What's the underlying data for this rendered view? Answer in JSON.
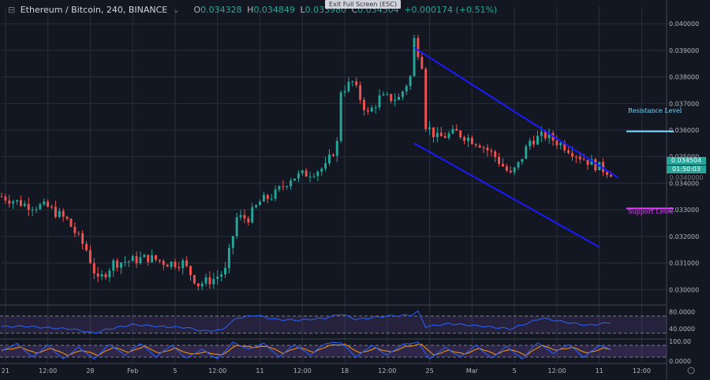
{
  "header": {
    "symbol": "Ethereum / Bitcoin, 240, BINANCE",
    "caret": "⌄",
    "o_label": "O",
    "o_value": "0.034328",
    "h_label": "H",
    "h_value": "0.034849",
    "l_label": "L",
    "l_value": "0.033980",
    "c_label": "C",
    "c_value": "0.034504",
    "change": "+0.000174 (+0.51%)",
    "exit_fullscreen": "Exit Full Screen (ESC)"
  },
  "price_tags": {
    "last_price": "0.034504",
    "countdown": "01:50:03",
    "next_price": "0.0340000"
  },
  "annotations": {
    "resistance": "Resistance Level",
    "support": "Support Level"
  },
  "colors": {
    "up": "#26a69a",
    "down": "#ef5350",
    "channel": "#1a1aff",
    "resistance": "#7fdbff",
    "support": "#e040fb",
    "rsi": "#2962ff",
    "stoch_k": "#2962ff",
    "stoch_d": "#ff9800",
    "band": "#7e57c2"
  },
  "chart_data": {
    "type": "candlestick",
    "title": "Ethereum / Bitcoin, 240, BINANCE",
    "y_ticks": [
      "0.040000",
      "0.039000",
      "0.038000",
      "0.037000",
      "0.036000",
      "0.035000",
      "0.034000",
      "0.033000",
      "0.032000",
      "0.031000",
      "0.030000"
    ],
    "y_tick_values": [
      0.04,
      0.039,
      0.038,
      0.037,
      0.036,
      0.035,
      0.034,
      0.033,
      0.032,
      0.031,
      0.03
    ],
    "ylim": [
      0.02983,
      0.0403
    ],
    "x_ticks": [
      "21",
      "12:00",
      "28",
      "Feb",
      "5",
      "12:00",
      "11",
      "12:00",
      "18",
      "12:00",
      "25",
      "Mar",
      "5",
      "12:00",
      "11",
      "12:00"
    ],
    "x_tick_index": [
      1,
      12,
      23,
      34,
      45,
      56,
      67,
      78,
      89,
      100,
      111,
      122,
      133,
      144,
      155,
      166
    ],
    "n_periods": 170,
    "price_path": [
      [
        0,
        0.0335
      ],
      [
        6,
        0.0332
      ],
      [
        12,
        0.0331
      ],
      [
        17,
        0.0326
      ],
      [
        22,
        0.0315
      ],
      [
        25,
        0.0303
      ],
      [
        29,
        0.031
      ],
      [
        34,
        0.0311
      ],
      [
        38,
        0.0312
      ],
      [
        43,
        0.031
      ],
      [
        47,
        0.031
      ],
      [
        51,
        0.0302
      ],
      [
        55,
        0.0304
      ],
      [
        58,
        0.0307
      ],
      [
        61,
        0.0327
      ],
      [
        64,
        0.0327
      ],
      [
        67,
        0.0333
      ],
      [
        71,
        0.0336
      ],
      [
        75,
        0.0342
      ],
      [
        80,
        0.0344
      ],
      [
        84,
        0.0346
      ],
      [
        87,
        0.0355
      ],
      [
        88,
        0.0375
      ],
      [
        91,
        0.0378
      ],
      [
        95,
        0.0366
      ],
      [
        98,
        0.0372
      ],
      [
        103,
        0.0372
      ],
      [
        106,
        0.038
      ],
      [
        107,
        0.0394
      ],
      [
        109,
        0.0385
      ],
      [
        110,
        0.0362
      ],
      [
        113,
        0.0357
      ],
      [
        118,
        0.0359
      ],
      [
        124,
        0.0355
      ],
      [
        128,
        0.035
      ],
      [
        132,
        0.0343
      ],
      [
        134,
        0.0347
      ],
      [
        137,
        0.0356
      ],
      [
        141,
        0.0358
      ],
      [
        146,
        0.0354
      ],
      [
        150,
        0.035
      ],
      [
        155,
        0.0346
      ],
      [
        158,
        0.0344
      ]
    ],
    "channel_upper": [
      [
        107,
        0.0391
      ],
      [
        160,
        0.0342
      ]
    ],
    "channel_lower": [
      [
        107,
        0.0355
      ],
      [
        155,
        0.0316
      ]
    ],
    "resistance_level": 0.03595,
    "support_level": 0.03305,
    "rsi": {
      "ticks": [
        "80.0000",
        "40.0000"
      ],
      "tick_values": [
        80,
        40
      ],
      "upper_band": 70,
      "lower_band": 30,
      "path": [
        [
          0,
          45
        ],
        [
          6,
          46
        ],
        [
          13,
          42
        ],
        [
          18,
          40
        ],
        [
          24,
          30
        ],
        [
          27,
          38
        ],
        [
          34,
          50
        ],
        [
          42,
          45
        ],
        [
          48,
          43
        ],
        [
          52,
          35
        ],
        [
          57,
          37
        ],
        [
          61,
          65
        ],
        [
          66,
          72
        ],
        [
          71,
          62
        ],
        [
          77,
          60
        ],
        [
          84,
          65
        ],
        [
          88,
          75
        ],
        [
          92,
          62
        ],
        [
          100,
          70
        ],
        [
          106,
          72
        ],
        [
          108,
          80
        ],
        [
          110,
          45
        ],
        [
          116,
          52
        ],
        [
          125,
          46
        ],
        [
          132,
          40
        ],
        [
          136,
          52
        ],
        [
          140,
          65
        ],
        [
          146,
          56
        ],
        [
          152,
          48
        ],
        [
          158,
          55
        ]
      ]
    },
    "stoch": {
      "ticks": [
        "100.00",
        "0.0000"
      ],
      "tick_values": [
        100,
        0
      ],
      "upper_band": 80,
      "lower_band": 20,
      "k_path": [
        [
          0,
          50
        ],
        [
          4,
          90
        ],
        [
          8,
          20
        ],
        [
          12,
          80
        ],
        [
          16,
          10
        ],
        [
          20,
          70
        ],
        [
          24,
          10
        ],
        [
          28,
          85
        ],
        [
          32,
          30
        ],
        [
          36,
          90
        ],
        [
          40,
          20
        ],
        [
          44,
          80
        ],
        [
          48,
          15
        ],
        [
          52,
          60
        ],
        [
          56,
          10
        ],
        [
          60,
          95
        ],
        [
          64,
          60
        ],
        [
          68,
          90
        ],
        [
          72,
          20
        ],
        [
          76,
          85
        ],
        [
          80,
          30
        ],
        [
          84,
          90
        ],
        [
          88,
          95
        ],
        [
          92,
          20
        ],
        [
          96,
          80
        ],
        [
          100,
          30
        ],
        [
          104,
          85
        ],
        [
          108,
          95
        ],
        [
          111,
          10
        ],
        [
          115,
          70
        ],
        [
          119,
          20
        ],
        [
          123,
          80
        ],
        [
          127,
          15
        ],
        [
          131,
          75
        ],
        [
          135,
          10
        ],
        [
          139,
          95
        ],
        [
          143,
          40
        ],
        [
          147,
          85
        ],
        [
          151,
          20
        ],
        [
          155,
          80
        ],
        [
          158,
          60
        ]
      ],
      "d_path": [
        [
          0,
          55
        ],
        [
          5,
          70
        ],
        [
          9,
          40
        ],
        [
          13,
          65
        ],
        [
          17,
          30
        ],
        [
          21,
          55
        ],
        [
          25,
          30
        ],
        [
          29,
          70
        ],
        [
          33,
          45
        ],
        [
          37,
          75
        ],
        [
          41,
          40
        ],
        [
          45,
          65
        ],
        [
          49,
          35
        ],
        [
          53,
          45
        ],
        [
          57,
          30
        ],
        [
          61,
          80
        ],
        [
          65,
          70
        ],
        [
          69,
          75
        ],
        [
          73,
          40
        ],
        [
          77,
          70
        ],
        [
          81,
          45
        ],
        [
          85,
          80
        ],
        [
          89,
          85
        ],
        [
          93,
          40
        ],
        [
          97,
          65
        ],
        [
          101,
          45
        ],
        [
          105,
          75
        ],
        [
          109,
          85
        ],
        [
          112,
          30
        ],
        [
          116,
          55
        ],
        [
          120,
          35
        ],
        [
          124,
          65
        ],
        [
          128,
          35
        ],
        [
          132,
          60
        ],
        [
          136,
          30
        ],
        [
          140,
          80
        ],
        [
          144,
          55
        ],
        [
          148,
          70
        ],
        [
          152,
          40
        ],
        [
          156,
          65
        ],
        [
          158,
          60
        ]
      ]
    }
  }
}
